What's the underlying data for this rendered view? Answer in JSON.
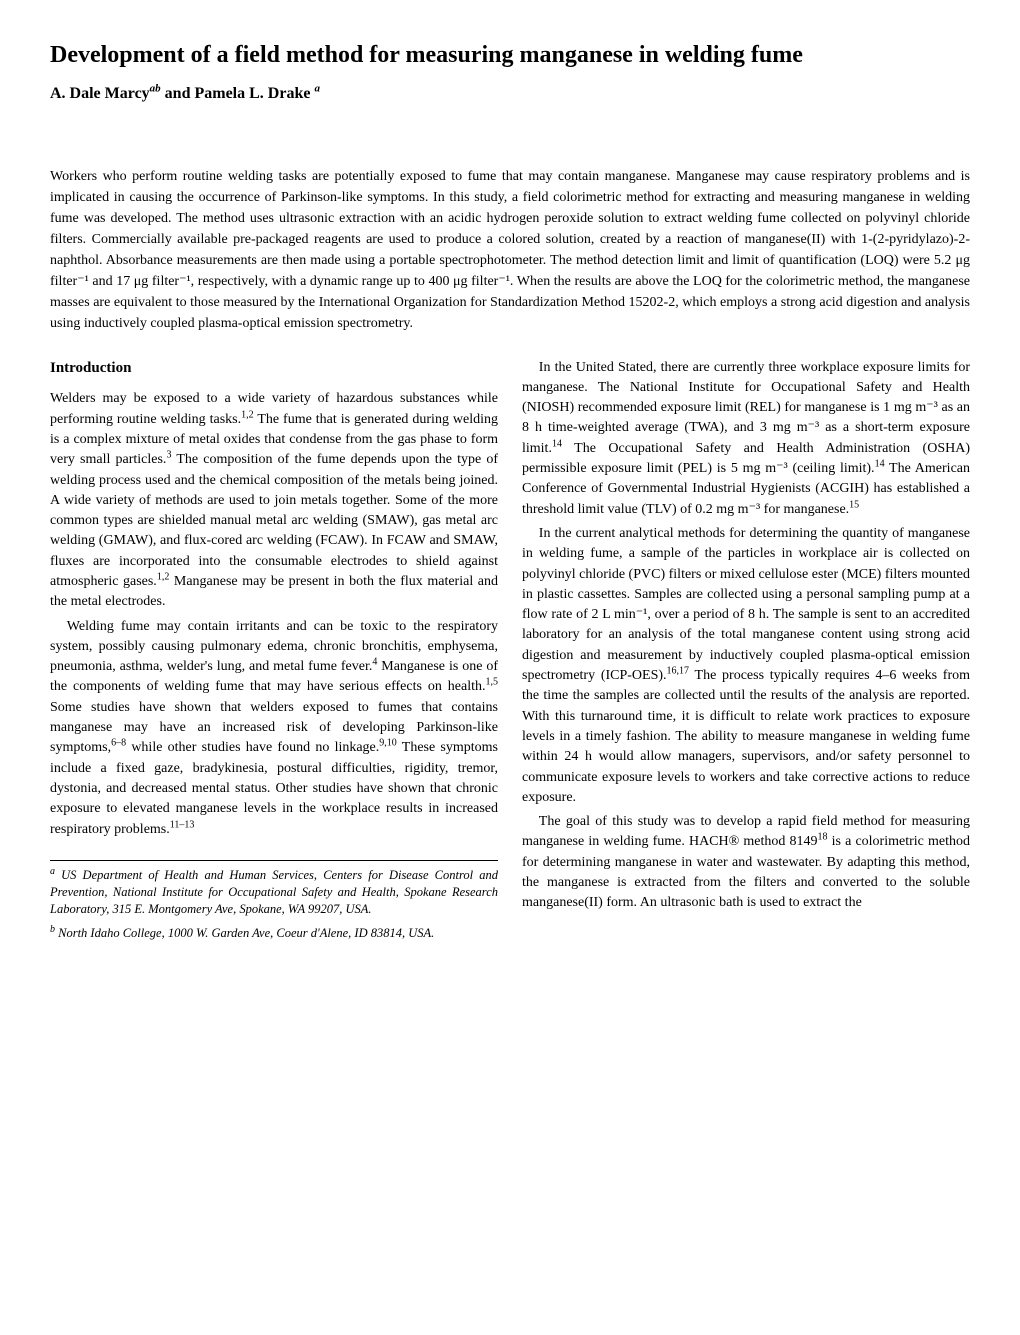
{
  "title": "Development of a field method for measuring manganese in welding fume",
  "authors_prefix": "A. Dale Marcy",
  "authors_sup1": "ab",
  "authors_conj": " and Pamela L. Drake ",
  "authors_sup2": "a",
  "abstract": "Workers who perform routine welding tasks are potentially exposed to fume that may contain manganese. Manganese may cause respiratory problems and is implicated in causing the occurrence of Parkinson-like symptoms. In this study, a field colorimetric method for extracting and measuring manganese in welding fume was developed. The method uses ultrasonic extraction with an acidic hydrogen peroxide solution to extract welding fume collected on polyvinyl chloride filters. Commercially available pre-packaged reagents are used to produce a colored solution, created by a reaction of manganese(II) with 1-(2-pyridylazo)-2-naphthol. Absorbance measurements are then made using a portable spectrophotometer. The method detection limit and limit of quantification (LOQ) were 5.2 μg filter⁻¹ and 17 μg filter⁻¹, respectively, with a dynamic range up to 400 μg filter⁻¹. When the results are above the LOQ for the colorimetric method, the manganese masses are equivalent to those measured by the International Organization for Standardization Method 15202-2, which employs a strong acid digestion and analysis using inductively coupled plasma-optical emission spectrometry.",
  "intro_heading": "Introduction",
  "p1a": "Welders may be exposed to a wide variety of hazardous substances while performing routine welding tasks.",
  "p1b": " The fume that is generated during welding is a complex mixture of metal oxides that condense from the gas phase to form very small particles.",
  "p1c": " The composition of the fume depends upon the type of welding process used and the chemical composition of the metals being joined. A wide variety of methods are used to join metals together. Some of the more common types are shielded manual metal arc welding (SMAW), gas metal arc welding (GMAW), and flux-cored arc welding (FCAW). In FCAW and SMAW, fluxes are incorporated into the consumable electrodes to shield against atmospheric gases.",
  "p1d": " Manganese may be present in both the flux material and the metal electrodes.",
  "p2a": "Welding fume may contain irritants and can be toxic to the respiratory system, possibly causing pulmonary edema, chronic bronchitis, emphysema, pneumonia, asthma, welder's lung, and metal fume fever.",
  "p2b": " Manganese is one of the components of welding fume that may have serious effects on health.",
  "p2c": " Some studies have shown that welders exposed to fumes that contains manganese may have an increased risk of developing Parkinson-like symptoms,",
  "p2d": " while other studies have found no linkage.",
  "p2e": " These symptoms include a fixed gaze, bradykinesia, postural difficulties, rigidity, tremor, dystonia, and decreased mental status. Other studies have shown that chronic exposure to elevated manganese levels in the workplace results in increased respiratory problems.",
  "p3a": "In the United Stated, there are currently three workplace exposure limits for manganese. The National Institute for Occupational Safety and Health (NIOSH) recommended exposure limit (REL) for manganese is 1 mg m⁻³ as an 8 h time-weighted average (TWA), and 3 mg m⁻³ as a short-term exposure limit.",
  "p3b": " The Occupational Safety and Health Administration (OSHA) permissible exposure limit (PEL) is 5 mg m⁻³ (ceiling limit).",
  "p3c": " The American Conference of Governmental Industrial Hygienists (ACGIH) has established a threshold limit value (TLV) of 0.2 mg m⁻³ for manganese.",
  "p4a": "In the current analytical methods for determining the quantity of manganese in welding fume, a sample of the particles in workplace air is collected on polyvinyl chloride (PVC) filters or mixed cellulose ester (MCE) filters mounted in plastic cassettes. Samples are collected using a personal sampling pump at a flow rate of 2 L min⁻¹, over a period of 8 h. The sample is sent to an accredited laboratory for an analysis of the total manganese content using strong acid digestion and measurement by inductively coupled plasma-optical emission spectrometry (ICP-OES).",
  "p4b": " The process typically requires 4–6 weeks from the time the samples are collected until the results of the analysis are reported. With this turnaround time, it is difficult to relate work practices to exposure levels in a timely fashion. The ability to measure manganese in welding fume within 24 h would allow managers, supervisors, and/or safety personnel to communicate exposure levels to workers and take corrective actions to reduce exposure.",
  "p5a": "The goal of this study was to develop a rapid field method for measuring manganese in welding fume. HACH® method 8149",
  "p5b": " is a colorimetric method for determining manganese in water and wastewater. By adapting this method, the manganese is extracted from the filters and converted to the soluble manganese(II) form. An ultrasonic bath is used to extract the",
  "sup_1_2": "1,2",
  "sup_3": "3",
  "sup_4": "4",
  "sup_1_5": "1,5",
  "sup_6_8": "6–8",
  "sup_9_10": "9,10",
  "sup_11_13": "11–13",
  "sup_14": "14",
  "sup_15": "15",
  "sup_16_17": "16,17",
  "sup_18": "18",
  "fn_a_marker": "a",
  "fn_a": " US Department of Health and Human Services, Centers for Disease Control and Prevention, National Institute for Occupational Safety and Health, Spokane Research Laboratory, 315 E. Montgomery Ave, Spokane, WA 99207, USA.",
  "fn_b_marker": "b",
  "fn_b": " North Idaho College, 1000 W. Garden Ave, Coeur d'Alene, ID 83814, USA."
}
